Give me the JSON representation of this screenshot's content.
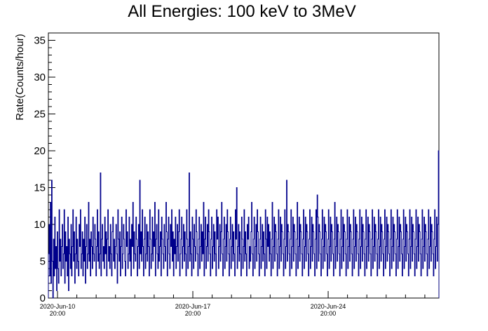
{
  "chart_data": {
    "type": "histogram",
    "title": "All Energies:  100 keV to 3MeV",
    "xlabel": "",
    "ylabel": "Rate(Counts/hour)",
    "ylim": [
      0,
      36
    ],
    "y_ticks": [
      0,
      5,
      10,
      15,
      20,
      25,
      30,
      35
    ],
    "x_tick_labels": [
      {
        "date": "2020-Jun-10",
        "time": "20:00"
      },
      {
        "date": "2020-Jun-17",
        "time": "20:00"
      },
      {
        "date": "2020-Jun-24",
        "time": "20:00"
      }
    ],
    "x_range": [
      "2020-Jun-10 20:00",
      "2020-Jul-01 00:00"
    ],
    "grid": false,
    "line_color": "#00008b",
    "hourly_rates": [
      6,
      10,
      3,
      13,
      2,
      16,
      5,
      0,
      8,
      3,
      11,
      4,
      7,
      1,
      9,
      4,
      2,
      12,
      5,
      8,
      3,
      7,
      10,
      4,
      6,
      12,
      2,
      9,
      5,
      7,
      3,
      11,
      1,
      8,
      6,
      4,
      10,
      3,
      7,
      12,
      5,
      9,
      2,
      6,
      11,
      4,
      8,
      5,
      3,
      10,
      7,
      12,
      4,
      6,
      9,
      3,
      8,
      5,
      11,
      2,
      7,
      10,
      4,
      6,
      13,
      5,
      8,
      3,
      9,
      7,
      4,
      11,
      6,
      5,
      10,
      8,
      3,
      7,
      12,
      5,
      9,
      4,
      6,
      17,
      3,
      8,
      10,
      5,
      7,
      4,
      11,
      6,
      9,
      3,
      8,
      12,
      5,
      7,
      4,
      10,
      6,
      3,
      9,
      11,
      5,
      8,
      4,
      7,
      10,
      6,
      2,
      12,
      8,
      5,
      9,
      3,
      7,
      11,
      4,
      6,
      10,
      8,
      5,
      3,
      12,
      7,
      9,
      4,
      6,
      11,
      5,
      8,
      3,
      10,
      7,
      13,
      4,
      9,
      6,
      5,
      11,
      8,
      3,
      7,
      10,
      4,
      16,
      6,
      9,
      5,
      12,
      7,
      3,
      8,
      11,
      4,
      6,
      10,
      5,
      9,
      7,
      3,
      12,
      8,
      4,
      6,
      11,
      5,
      9,
      7,
      13,
      3,
      8,
      10,
      6,
      4,
      12,
      5,
      7,
      9,
      3,
      11,
      8,
      6,
      4,
      10,
      7,
      5,
      13,
      9,
      3,
      8,
      11,
      6,
      4,
      10,
      7,
      12,
      5,
      9,
      3,
      8,
      6,
      11,
      4,
      7,
      10,
      5,
      9,
      12,
      3,
      6,
      8,
      11,
      4,
      7,
      10,
      5,
      9,
      6,
      3,
      12,
      8,
      4,
      7,
      17,
      5,
      9,
      6,
      3,
      11,
      8,
      4,
      10,
      7,
      5,
      12,
      9,
      6,
      3,
      8,
      11,
      4,
      7,
      10,
      5,
      9,
      6,
      13,
      3,
      8,
      11,
      4,
      7,
      10,
      5,
      12,
      9,
      6,
      3,
      8,
      11,
      4,
      7,
      10,
      5,
      9,
      6,
      3,
      12,
      8,
      11,
      4,
      7,
      10,
      5,
      9,
      13,
      6,
      3,
      8,
      11,
      4,
      7,
      10,
      5,
      12,
      9,
      6,
      3,
      8,
      11,
      4,
      7,
      10,
      5,
      9,
      6,
      3,
      12,
      8,
      15,
      4,
      7,
      10,
      5,
      9,
      6,
      3,
      11,
      8,
      4,
      7,
      12,
      5,
      9,
      6,
      3,
      10,
      8,
      11,
      4,
      7,
      5,
      9,
      13,
      6,
      3,
      8,
      11,
      4,
      7,
      10,
      5,
      12,
      9,
      6,
      3,
      8,
      11,
      4,
      7,
      10,
      5,
      9,
      6,
      3,
      12,
      8,
      4,
      11,
      7,
      10,
      5,
      9,
      6,
      3,
      8,
      13,
      4,
      7,
      11,
      5,
      10,
      9,
      6,
      3,
      8,
      12,
      4,
      7,
      11,
      5,
      10,
      9,
      6,
      3,
      8,
      12,
      4,
      7,
      16,
      5,
      10,
      9,
      6,
      3,
      8,
      12,
      4,
      7,
      11,
      5,
      10,
      9,
      6,
      3,
      8,
      13,
      4,
      7,
      11,
      5,
      10,
      9,
      6,
      3,
      8,
      12,
      4,
      7,
      11,
      5,
      10,
      9,
      6,
      3,
      8,
      12,
      4,
      7,
      11,
      5,
      10,
      9,
      6,
      3,
      8,
      12,
      4,
      14,
      11,
      5,
      10,
      9,
      6,
      3,
      8,
      12,
      4,
      7,
      11,
      5,
      10,
      9,
      6,
      3,
      8,
      12,
      4,
      7,
      11,
      5,
      10,
      9,
      6,
      3,
      8,
      13,
      4,
      7,
      11,
      5,
      10,
      9,
      6,
      3,
      8,
      12,
      4,
      7,
      11,
      5,
      10,
      9,
      6,
      3,
      8,
      12,
      4,
      7,
      11,
      5,
      10,
      9,
      6,
      3,
      8,
      12,
      4,
      7,
      11,
      5,
      10,
      9,
      6,
      3,
      8,
      12,
      4,
      7,
      11,
      5,
      10,
      9,
      6,
      3,
      8,
      12,
      4,
      7,
      11,
      5,
      10,
      9,
      6,
      3,
      8,
      12,
      4,
      7,
      11,
      5,
      10,
      9,
      6,
      3,
      8,
      12,
      4,
      7,
      11,
      5,
      10,
      9,
      6,
      3,
      8,
      12,
      4,
      7,
      11,
      5,
      10,
      9,
      6,
      3,
      8,
      12,
      4,
      7,
      11,
      5,
      10,
      9,
      6,
      3,
      8,
      12,
      4,
      7,
      11,
      5,
      10,
      9,
      6,
      3,
      8,
      12,
      4,
      7,
      11,
      5,
      10,
      9,
      6,
      3,
      8,
      12,
      4,
      7,
      11,
      5,
      10,
      9,
      6,
      3,
      8,
      12,
      4,
      7,
      11,
      5,
      10,
      9,
      6,
      3,
      8,
      12,
      4,
      7,
      11,
      5,
      10,
      9,
      6,
      3,
      8,
      12,
      4,
      7,
      11,
      5,
      10,
      9,
      6,
      3,
      8,
      12,
      4,
      7,
      11,
      5,
      10,
      20
    ]
  }
}
